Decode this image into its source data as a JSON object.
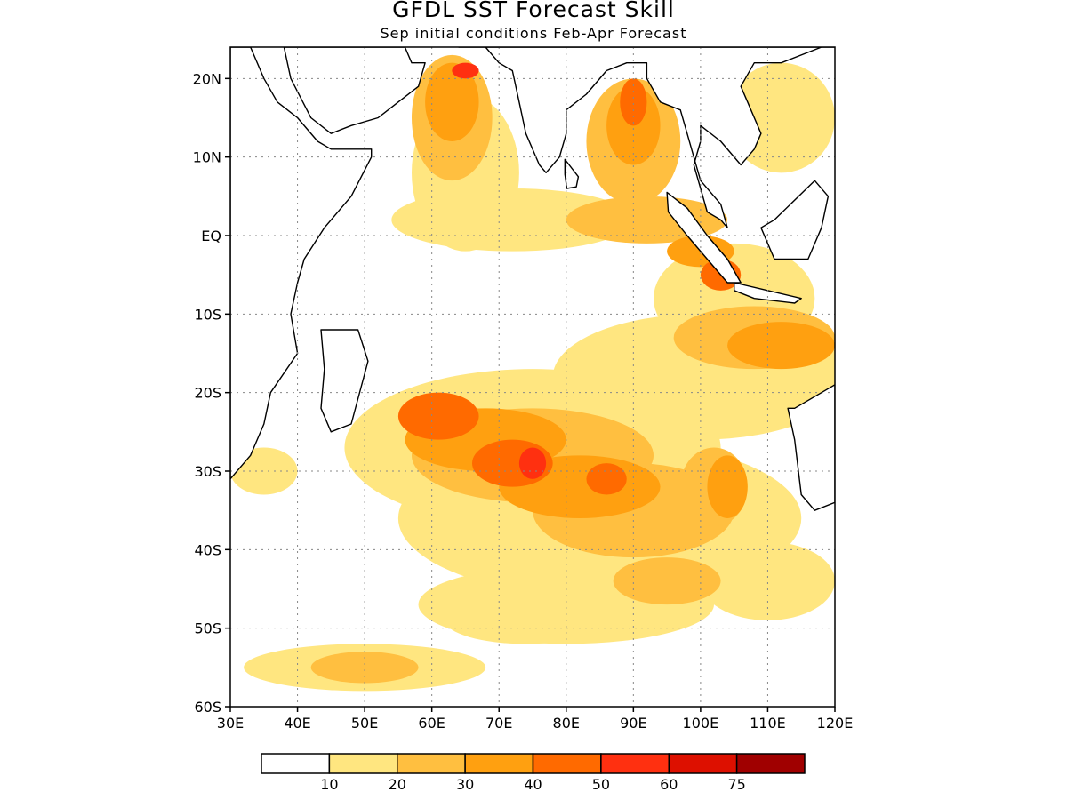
{
  "title": "GFDL SST Forecast Skill",
  "subtitle": "Sep initial conditions  Feb-Apr Forecast",
  "map": {
    "region": "Indian Ocean",
    "lon_range": [
      30,
      120
    ],
    "lat_range": [
      -60,
      24
    ],
    "gridlines": "dotted",
    "lat_ticks": [
      {
        "lat": 20,
        "label": "20N"
      },
      {
        "lat": 10,
        "label": "10N"
      },
      {
        "lat": 0,
        "label": "EQ"
      },
      {
        "lat": -10,
        "label": "10S"
      },
      {
        "lat": -20,
        "label": "20S"
      },
      {
        "lat": -30,
        "label": "30S"
      },
      {
        "lat": -40,
        "label": "40S"
      },
      {
        "lat": -50,
        "label": "50S"
      },
      {
        "lat": -60,
        "label": "60S"
      }
    ],
    "lon_ticks": [
      {
        "lon": 30,
        "label": "30E"
      },
      {
        "lon": 40,
        "label": "40E"
      },
      {
        "lon": 50,
        "label": "50E"
      },
      {
        "lon": 60,
        "label": "60E"
      },
      {
        "lon": 70,
        "label": "70E"
      },
      {
        "lon": 80,
        "label": "80E"
      },
      {
        "lon": 90,
        "label": "90E"
      },
      {
        "lon": 100,
        "label": "100E"
      },
      {
        "lon": 110,
        "label": "110E"
      },
      {
        "lon": 120,
        "label": "120E"
      }
    ]
  },
  "colorbar": {
    "colors": [
      "#ffffff",
      "#ffe680",
      "#ffbf40",
      "#ffa010",
      "#ff6a00",
      "#ff3010",
      "#dd1000",
      "#a00000"
    ],
    "labels": [
      "10",
      "20",
      "30",
      "40",
      "50",
      "60",
      "75"
    ]
  },
  "skill_regions": [
    {
      "level": 1,
      "lon": 65,
      "lat": 8,
      "rx": 8,
      "ry": 10
    },
    {
      "level": 1,
      "lon": 72,
      "lat": 2,
      "rx": 18,
      "ry": 4
    },
    {
      "level": 1,
      "lon": 105,
      "lat": -8,
      "rx": 12,
      "ry": 7
    },
    {
      "level": 1,
      "lon": 100,
      "lat": -18,
      "rx": 22,
      "ry": 8
    },
    {
      "level": 1,
      "lon": 112,
      "lat": 15,
      "rx": 8,
      "ry": 7
    },
    {
      "level": 1,
      "lon": 75,
      "lat": -27,
      "rx": 28,
      "ry": 10
    },
    {
      "level": 1,
      "lon": 85,
      "lat": -36,
      "rx": 30,
      "ry": 10
    },
    {
      "level": 1,
      "lon": 80,
      "lat": -47,
      "rx": 22,
      "ry": 5
    },
    {
      "level": 1,
      "lon": 50,
      "lat": -55,
      "rx": 18,
      "ry": 3
    },
    {
      "level": 1,
      "lon": 110,
      "lat": -44,
      "rx": 10,
      "ry": 5
    },
    {
      "level": 1,
      "lon": 35,
      "lat": -30,
      "rx": 5,
      "ry": 3
    },
    {
      "level": 1,
      "lon": 74,
      "lat": -49,
      "rx": 12,
      "ry": 3
    },
    {
      "level": 2,
      "lon": 63,
      "lat": 15,
      "rx": 6,
      "ry": 8
    },
    {
      "level": 2,
      "lon": 90,
      "lat": 12,
      "rx": 7,
      "ry": 8
    },
    {
      "level": 2,
      "lon": 92,
      "lat": 2,
      "rx": 12,
      "ry": 3
    },
    {
      "level": 2,
      "lon": 108,
      "lat": -13,
      "rx": 12,
      "ry": 4
    },
    {
      "level": 2,
      "lon": 75,
      "lat": -28,
      "rx": 18,
      "ry": 6
    },
    {
      "level": 2,
      "lon": 90,
      "lat": -35,
      "rx": 15,
      "ry": 6
    },
    {
      "level": 2,
      "lon": 95,
      "lat": -44,
      "rx": 8,
      "ry": 3
    },
    {
      "level": 2,
      "lon": 50,
      "lat": -55,
      "rx": 8,
      "ry": 2
    },
    {
      "level": 2,
      "lon": 102,
      "lat": -32,
      "rx": 5,
      "ry": 5
    },
    {
      "level": 3,
      "lon": 63,
      "lat": 17,
      "rx": 4,
      "ry": 5
    },
    {
      "level": 3,
      "lon": 90,
      "lat": 14,
      "rx": 4,
      "ry": 5
    },
    {
      "level": 3,
      "lon": 100,
      "lat": -2,
      "rx": 5,
      "ry": 2
    },
    {
      "level": 3,
      "lon": 112,
      "lat": -14,
      "rx": 8,
      "ry": 3
    },
    {
      "level": 3,
      "lon": 68,
      "lat": -26,
      "rx": 12,
      "ry": 4
    },
    {
      "level": 3,
      "lon": 82,
      "lat": -32,
      "rx": 12,
      "ry": 4
    },
    {
      "level": 3,
      "lon": 104,
      "lat": -32,
      "rx": 3,
      "ry": 4
    },
    {
      "level": 4,
      "lon": 61,
      "lat": -23,
      "rx": 6,
      "ry": 3
    },
    {
      "level": 4,
      "lon": 72,
      "lat": -29,
      "rx": 6,
      "ry": 3
    },
    {
      "level": 4,
      "lon": 90,
      "lat": 17,
      "rx": 2,
      "ry": 3
    },
    {
      "level": 4,
      "lon": 103,
      "lat": -5,
      "rx": 3,
      "ry": 2
    },
    {
      "level": 4,
      "lon": 86,
      "lat": -31,
      "rx": 3,
      "ry": 2
    },
    {
      "level": 5,
      "lon": 75,
      "lat": -29,
      "rx": 2,
      "ry": 2
    },
    {
      "level": 5,
      "lon": 65,
      "lat": 21,
      "rx": 2,
      "ry": 1
    }
  ],
  "land": [
    [
      [
        30,
        24
      ],
      [
        33,
        24
      ],
      [
        35,
        20
      ],
      [
        37,
        17
      ],
      [
        40,
        15
      ],
      [
        43,
        12
      ],
      [
        45,
        11
      ],
      [
        51,
        11
      ],
      [
        51,
        10
      ],
      [
        48,
        5
      ],
      [
        44,
        1
      ],
      [
        41,
        -3
      ],
      [
        40,
        -6
      ],
      [
        39,
        -10
      ],
      [
        40,
        -15
      ],
      [
        36,
        -20
      ],
      [
        35,
        -24
      ],
      [
        33,
        -28
      ],
      [
        30,
        -31
      ]
    ],
    [
      [
        50,
        24
      ],
      [
        56,
        24
      ],
      [
        57,
        22
      ],
      [
        59,
        22
      ],
      [
        58,
        19
      ],
      [
        55,
        17
      ],
      [
        52,
        15
      ],
      [
        48,
        14
      ],
      [
        45,
        13
      ],
      [
        42,
        15
      ],
      [
        39,
        20
      ],
      [
        38,
        24
      ]
    ],
    [
      [
        64,
        24
      ],
      [
        68,
        24
      ],
      [
        70,
        22
      ],
      [
        72,
        21
      ],
      [
        73,
        17
      ],
      [
        74,
        13
      ],
      [
        76,
        9
      ],
      [
        77,
        8
      ],
      [
        79,
        10
      ],
      [
        80,
        13
      ],
      [
        80,
        16
      ],
      [
        83,
        18
      ],
      [
        86,
        21
      ],
      [
        89,
        22
      ],
      [
        92,
        22
      ],
      [
        92,
        20
      ],
      [
        94,
        17
      ],
      [
        97,
        16
      ],
      [
        98,
        13
      ],
      [
        99,
        10
      ],
      [
        100,
        7
      ],
      [
        103,
        4
      ],
      [
        104,
        1
      ],
      [
        103,
        2
      ],
      [
        101,
        3
      ],
      [
        100,
        6
      ],
      [
        99,
        9
      ],
      [
        100,
        12
      ],
      [
        100,
        14
      ],
      [
        103,
        12
      ],
      [
        106,
        9
      ],
      [
        108,
        11
      ],
      [
        109,
        13
      ],
      [
        107,
        17
      ],
      [
        106,
        19
      ],
      [
        108,
        22
      ],
      [
        112,
        22
      ],
      [
        118,
        24
      ],
      [
        120,
        24
      ],
      [
        120,
        24
      ]
    ],
    [
      [
        79.8,
        9.7
      ],
      [
        81.8,
        7.5
      ],
      [
        81.5,
        6.2
      ],
      [
        80.1,
        6
      ],
      [
        79.8,
        7.8
      ]
    ],
    [
      [
        95,
        5.5
      ],
      [
        98,
        3.5
      ],
      [
        101,
        0
      ],
      [
        104,
        -3
      ],
      [
        106,
        -6
      ],
      [
        104,
        -6
      ],
      [
        101,
        -3
      ],
      [
        98,
        0
      ],
      [
        95.2,
        3
      ]
    ],
    [
      [
        105,
        -6
      ],
      [
        110,
        -7
      ],
      [
        115,
        -8
      ],
      [
        114,
        -8.6
      ],
      [
        108,
        -8
      ],
      [
        105,
        -7
      ]
    ],
    [
      [
        109,
        1
      ],
      [
        111,
        2
      ],
      [
        117,
        7
      ],
      [
        119,
        5
      ],
      [
        118,
        1
      ],
      [
        116,
        -3
      ],
      [
        111,
        -3
      ],
      [
        110,
        -1
      ]
    ],
    [
      [
        43.5,
        -12
      ],
      [
        49,
        -12
      ],
      [
        50.5,
        -16
      ],
      [
        48,
        -24
      ],
      [
        45,
        -25
      ],
      [
        43.5,
        -22
      ],
      [
        44,
        -17
      ]
    ],
    [
      [
        113,
        -22
      ],
      [
        114,
        -26
      ],
      [
        115,
        -33
      ],
      [
        117,
        -35
      ],
      [
        120,
        -34
      ],
      [
        120,
        -19
      ],
      [
        118,
        -20
      ],
      [
        114,
        -22
      ]
    ]
  ]
}
